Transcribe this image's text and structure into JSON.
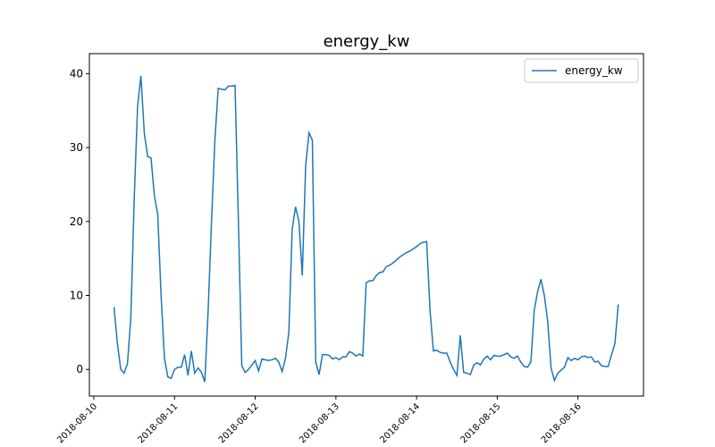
{
  "chart_data": {
    "type": "line",
    "title": "energy_kw",
    "x": [
      "2018-08-10 06:00",
      "2018-08-10 07:00",
      "2018-08-10 08:00",
      "2018-08-10 09:00",
      "2018-08-10 10:00",
      "2018-08-10 11:00",
      "2018-08-10 12:00",
      "2018-08-10 13:00",
      "2018-08-10 14:00",
      "2018-08-10 15:00",
      "2018-08-10 16:00",
      "2018-08-10 17:00",
      "2018-08-10 18:00",
      "2018-08-10 19:00",
      "2018-08-10 20:00",
      "2018-08-10 21:00",
      "2018-08-10 22:00",
      "2018-08-10 23:00",
      "2018-08-11 00:00",
      "2018-08-11 01:00",
      "2018-08-11 02:00",
      "2018-08-11 03:00",
      "2018-08-11 04:00",
      "2018-08-11 05:00",
      "2018-08-11 06:00",
      "2018-08-11 07:00",
      "2018-08-11 08:00",
      "2018-08-11 09:00",
      "2018-08-11 10:00",
      "2018-08-11 11:00",
      "2018-08-11 12:00",
      "2018-08-11 13:00",
      "2018-08-11 14:00",
      "2018-08-11 15:00",
      "2018-08-11 16:00",
      "2018-08-11 17:00",
      "2018-08-11 18:00",
      "2018-08-11 19:00",
      "2018-08-11 20:00",
      "2018-08-11 21:00",
      "2018-08-11 22:00",
      "2018-08-11 23:00",
      "2018-08-12 00:00",
      "2018-08-12 01:00",
      "2018-08-12 02:00",
      "2018-08-12 03:00",
      "2018-08-12 04:00",
      "2018-08-12 05:00",
      "2018-08-12 06:00",
      "2018-08-12 07:00",
      "2018-08-12 08:00",
      "2018-08-12 09:00",
      "2018-08-12 10:00",
      "2018-08-12 11:00",
      "2018-08-12 12:00",
      "2018-08-12 13:00",
      "2018-08-12 14:00",
      "2018-08-12 15:00",
      "2018-08-12 16:00",
      "2018-08-12 17:00",
      "2018-08-12 18:00",
      "2018-08-12 19:00",
      "2018-08-12 20:00",
      "2018-08-12 21:00",
      "2018-08-12 22:00",
      "2018-08-12 23:00",
      "2018-08-13 00:00",
      "2018-08-13 01:00",
      "2018-08-13 02:00",
      "2018-08-13 03:00",
      "2018-08-13 04:00",
      "2018-08-13 05:00",
      "2018-08-13 06:00",
      "2018-08-13 07:00",
      "2018-08-13 08:00",
      "2018-08-13 09:00",
      "2018-08-13 10:00",
      "2018-08-13 11:00",
      "2018-08-13 12:00",
      "2018-08-13 13:00",
      "2018-08-13 14:00",
      "2018-08-13 15:00",
      "2018-08-13 16:00",
      "2018-08-13 17:00",
      "2018-08-13 18:00",
      "2018-08-13 19:00",
      "2018-08-13 20:00",
      "2018-08-13 21:00",
      "2018-08-13 22:00",
      "2018-08-13 23:00",
      "2018-08-14 00:00",
      "2018-08-14 01:00",
      "2018-08-14 02:00",
      "2018-08-14 03:00",
      "2018-08-14 04:00",
      "2018-08-14 05:00",
      "2018-08-14 06:00",
      "2018-08-14 07:00",
      "2018-08-14 08:00",
      "2018-08-14 09:00",
      "2018-08-14 10:00",
      "2018-08-14 11:00",
      "2018-08-14 12:00",
      "2018-08-14 13:00",
      "2018-08-14 14:00",
      "2018-08-14 15:00",
      "2018-08-14 16:00",
      "2018-08-14 17:00",
      "2018-08-14 18:00",
      "2018-08-14 19:00",
      "2018-08-14 20:00",
      "2018-08-14 21:00",
      "2018-08-14 22:00",
      "2018-08-14 23:00",
      "2018-08-15 00:00",
      "2018-08-15 01:00",
      "2018-08-15 02:00",
      "2018-08-15 03:00",
      "2018-08-15 04:00",
      "2018-08-15 05:00",
      "2018-08-15 06:00",
      "2018-08-15 07:00",
      "2018-08-15 08:00",
      "2018-08-15 09:00",
      "2018-08-15 10:00",
      "2018-08-15 11:00",
      "2018-08-15 12:00",
      "2018-08-15 13:00",
      "2018-08-15 14:00",
      "2018-08-15 15:00",
      "2018-08-15 16:00",
      "2018-08-15 17:00",
      "2018-08-15 18:00",
      "2018-08-15 19:00",
      "2018-08-15 20:00",
      "2018-08-15 21:00",
      "2018-08-15 22:00",
      "2018-08-15 23:00",
      "2018-08-16 00:00",
      "2018-08-16 01:00",
      "2018-08-16 02:00",
      "2018-08-16 03:00",
      "2018-08-16 04:00",
      "2018-08-16 05:00",
      "2018-08-16 06:00",
      "2018-08-16 07:00",
      "2018-08-16 08:00",
      "2018-08-16 09:00",
      "2018-08-16 10:00",
      "2018-08-16 11:00",
      "2018-08-16 12:00"
    ],
    "series": [
      {
        "name": "energy_kw",
        "color": "#1f77b4",
        "values": [
          8.4,
          3.5,
          0,
          -0.5,
          0.8,
          7,
          23,
          35.5,
          39.7,
          32,
          28.8,
          28.6,
          23.5,
          21,
          10,
          1.5,
          -1,
          -1.2,
          0,
          0.3,
          0.3,
          2,
          -0.8,
          2.5,
          -0.5,
          0.2,
          -0.4,
          -1.7,
          8,
          20,
          31,
          38,
          37.9,
          37.8,
          38.3,
          38.3,
          38.4,
          20,
          0.5,
          -0.4,
          0,
          0.6,
          1.2,
          -0.2,
          1.4,
          1.3,
          1.2,
          1.3,
          1.5,
          1,
          -0.3,
          1.5,
          5,
          19,
          22,
          20,
          12.7,
          27.5,
          32,
          31,
          1,
          -0.7,
          2,
          2,
          1.9,
          1.4,
          1.6,
          1.3,
          1.7,
          1.7,
          2.4,
          2.2,
          1.8,
          2.1,
          1.8,
          11.7,
          12,
          12,
          12.7,
          13.1,
          13.2,
          13.9,
          14.1,
          14.4,
          14.8,
          15.2,
          15.5,
          15.8,
          16,
          16.3,
          16.6,
          17,
          17.2,
          17.3,
          8,
          2.5,
          2.6,
          2.3,
          2.2,
          2.2,
          1,
          0,
          -0.8,
          4.6,
          -0.4,
          -0.5,
          -0.7,
          0.6,
          0.9,
          0.6,
          1.4,
          1.8,
          1.3,
          1.9,
          1.8,
          1.8,
          2,
          2.2,
          1.7,
          1.5,
          1.8,
          1,
          0.4,
          0.3,
          1,
          8,
          10.5,
          12.2,
          10,
          6.5,
          0.2,
          -1.5,
          -0.5,
          -0.1,
          0.3,
          1.6,
          1.2,
          1.5,
          1.3,
          1.7,
          1.8,
          1.6,
          1.7,
          1,
          1.1,
          0.5,
          0.4,
          0.4,
          2,
          3.5,
          8.8
        ]
      }
    ],
    "xlim": [
      "2018-08-09 22:40",
      "2018-08-16 19:30"
    ],
    "xticks": [
      "2018-08-10",
      "2018-08-11",
      "2018-08-12",
      "2018-08-13",
      "2018-08-14",
      "2018-08-15",
      "2018-08-16"
    ],
    "ylim": [
      -3.6,
      42.7
    ],
    "yticks": [
      0,
      10,
      20,
      30,
      40
    ],
    "legend": "upper right",
    "grid": false
  }
}
